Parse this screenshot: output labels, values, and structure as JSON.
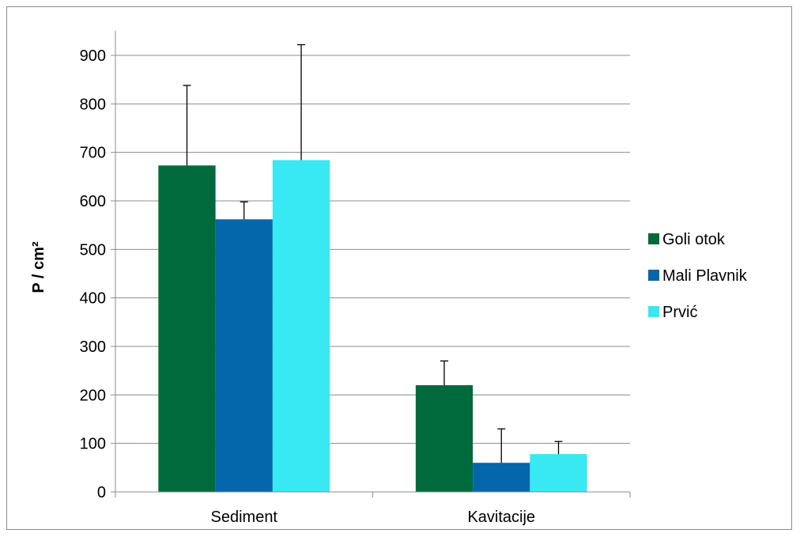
{
  "chart_data": {
    "type": "bar",
    "title": "",
    "xlabel": "",
    "ylabel": "P / cm²",
    "ylim": [
      0,
      900
    ],
    "yticks": [
      0,
      100,
      200,
      300,
      400,
      500,
      600,
      700,
      800,
      900
    ],
    "grid": true,
    "legend_position": "right",
    "categories": [
      "Sediment",
      "Kavitacije"
    ],
    "series": [
      {
        "name": "Goli otok",
        "color": "#006a3c",
        "values": [
          673,
          220
        ],
        "error": [
          165,
          50
        ]
      },
      {
        "name": "Mali Plavnik",
        "color": "#0466ab",
        "values": [
          562,
          60
        ],
        "error": [
          36,
          70
        ]
      },
      {
        "name": "Prvić",
        "color": "#38e8f2",
        "values": [
          684,
          78
        ],
        "error": [
          238,
          26
        ]
      }
    ]
  }
}
